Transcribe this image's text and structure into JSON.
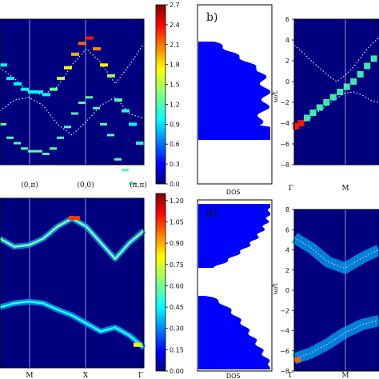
{
  "colormap": [
    "#00007f",
    "#0000ff",
    "#007fff",
    "#00ffff",
    "#7fff7f",
    "#ffff00",
    "#ff7f00",
    "#ff0000",
    "#7f0000"
  ],
  "chart_data": [
    {
      "panel": "a",
      "type": "heatmap",
      "title": "",
      "xlabel": "",
      "ylabel": "",
      "xtick_labels": [
        "(0,π)",
        "(0,0)",
        "(π,π)"
      ],
      "ylim": [
        -1.3,
        1.4
      ],
      "series": [
        {
          "kind": "dotted-dispersion-upper",
          "x": [
            0.0,
            0.1,
            0.2,
            0.3,
            0.4,
            0.5,
            0.6,
            0.7,
            0.8,
            0.9,
            1.0
          ],
          "values": [
            0.5,
            0.3,
            0.05,
            0.0,
            0.15,
            0.55,
            0.85,
            0.6,
            0.2,
            0.55,
            0.95
          ]
        },
        {
          "kind": "dotted-dispersion-lower",
          "x": [
            0.0,
            0.1,
            0.2,
            0.3,
            0.4,
            0.5,
            0.6,
            0.7,
            0.8,
            0.9,
            1.0
          ],
          "values": [
            -0.3,
            -0.1,
            -0.05,
            -0.2,
            -0.55,
            -0.75,
            -0.5,
            -0.2,
            -0.05,
            -0.35,
            -0.45
          ]
        },
        {
          "kind": "spectral-peaks",
          "x": [
            0.0,
            0.05,
            0.1,
            0.15,
            0.2,
            0.25,
            0.3,
            0.35,
            0.4,
            0.45,
            0.5,
            0.55,
            0.6,
            0.65,
            0.7,
            0.75,
            0.8,
            0.85,
            0.9,
            0.95
          ],
          "values": [
            0.55,
            0.3,
            0.2,
            0.1,
            0.05,
            0.05,
            0.0,
            0.1,
            0.3,
            0.5,
            0.75,
            0.95,
            1.05,
            0.85,
            0.55,
            0.35,
            -0.1,
            -0.3,
            -0.55,
            -0.9
          ],
          "intensity": [
            1.0,
            1.0,
            1.0,
            1.0,
            1.0,
            1.0,
            1.0,
            1.3,
            1.5,
            1.7,
            1.9,
            2.1,
            2.3,
            2.0,
            1.7,
            1.4,
            1.2,
            1.1,
            1.0,
            1.1
          ]
        }
      ],
      "colorbar": {
        "ticks": [
          "0.0",
          "0.3",
          "0.6",
          "0.9",
          "1.2",
          "1.5",
          "1.8",
          "2.1",
          "2.4",
          "2.7"
        ],
        "range": [
          0,
          2.7
        ]
      }
    },
    {
      "panel": "b",
      "type": "area",
      "label": "b)",
      "xlabel": "DOS",
      "note": "density of states profile, two lobes"
    },
    {
      "panel": "c",
      "type": "heatmap",
      "ylabel": "ω/t",
      "ylim": [
        -8,
        6
      ],
      "yticks": [
        "−8",
        "−6",
        "−4",
        "−2",
        "0",
        "2",
        "4",
        "6"
      ],
      "xtick_labels": [
        "Γ",
        "M"
      ],
      "series": [
        {
          "kind": "dotted-upper",
          "x": [
            0.0,
            0.1,
            0.2,
            0.3,
            0.4,
            0.5,
            0.6,
            0.7,
            0.8,
            0.9,
            1.0
          ],
          "values": [
            3.5,
            2.8,
            2.0,
            1.3,
            0.6,
            0.0,
            0.6,
            1.4,
            2.5,
            3.5,
            4.2
          ]
        },
        {
          "kind": "dotted-lower",
          "x": [
            0.0,
            0.1,
            0.2,
            0.3,
            0.4,
            0.5,
            0.6,
            0.7,
            0.8,
            0.9,
            1.0
          ],
          "values": [
            -4.5,
            -4.0,
            -3.4,
            -2.8,
            -2.2,
            -1.6,
            -1.1,
            -1.0,
            -1.3,
            -1.8,
            -2.0
          ]
        },
        {
          "kind": "spectral-peaks",
          "x": [
            0.02,
            0.08,
            0.15,
            0.22,
            0.3,
            0.38,
            0.46,
            0.54,
            0.62,
            0.7,
            0.78,
            0.86,
            0.94
          ],
          "values": [
            -4.3,
            -4.0,
            -3.5,
            -3.0,
            -2.5,
            -2.0,
            -1.5,
            -1.0,
            -0.5,
            0.0,
            0.7,
            1.5,
            2.2
          ]
        }
      ]
    },
    {
      "panel": "d",
      "type": "heatmap",
      "xtick_labels": [
        "M",
        "X",
        "Γ"
      ],
      "colorbar": {
        "ticks": [
          "0.00",
          "0.15",
          "0.30",
          "0.45",
          "0.60",
          "0.75",
          "0.90",
          "1.05",
          "1.20"
        ],
        "range": [
          0,
          1.25
        ]
      },
      "series": [
        {
          "kind": "upper-band",
          "x": [
            0.0,
            0.1,
            0.2,
            0.3,
            0.4,
            0.5,
            0.6,
            0.7,
            0.8,
            0.9,
            1.0
          ],
          "values": [
            0.6,
            0.5,
            0.52,
            0.6,
            0.75,
            0.85,
            0.75,
            0.55,
            0.35,
            0.55,
            0.7
          ]
        },
        {
          "kind": "lower-band",
          "x": [
            0.0,
            0.1,
            0.2,
            0.3,
            0.4,
            0.5,
            0.6,
            0.7,
            0.8,
            0.9,
            1.0
          ],
          "values": [
            -0.25,
            -0.2,
            -0.18,
            -0.2,
            -0.28,
            -0.35,
            -0.45,
            -0.55,
            -0.5,
            -0.6,
            -0.75
          ]
        }
      ]
    },
    {
      "panel": "e",
      "type": "area",
      "label": "d)",
      "xlabel": "DOS"
    },
    {
      "panel": "f",
      "type": "heatmap",
      "ylabel": "ω/t",
      "yticks": [
        "−8",
        "−6",
        "−4",
        "−2",
        "0",
        "2",
        "4",
        "6",
        "8"
      ],
      "xtick_labels": [
        "Γ",
        "M"
      ],
      "ylim": [
        -8,
        8
      ]
    }
  ]
}
